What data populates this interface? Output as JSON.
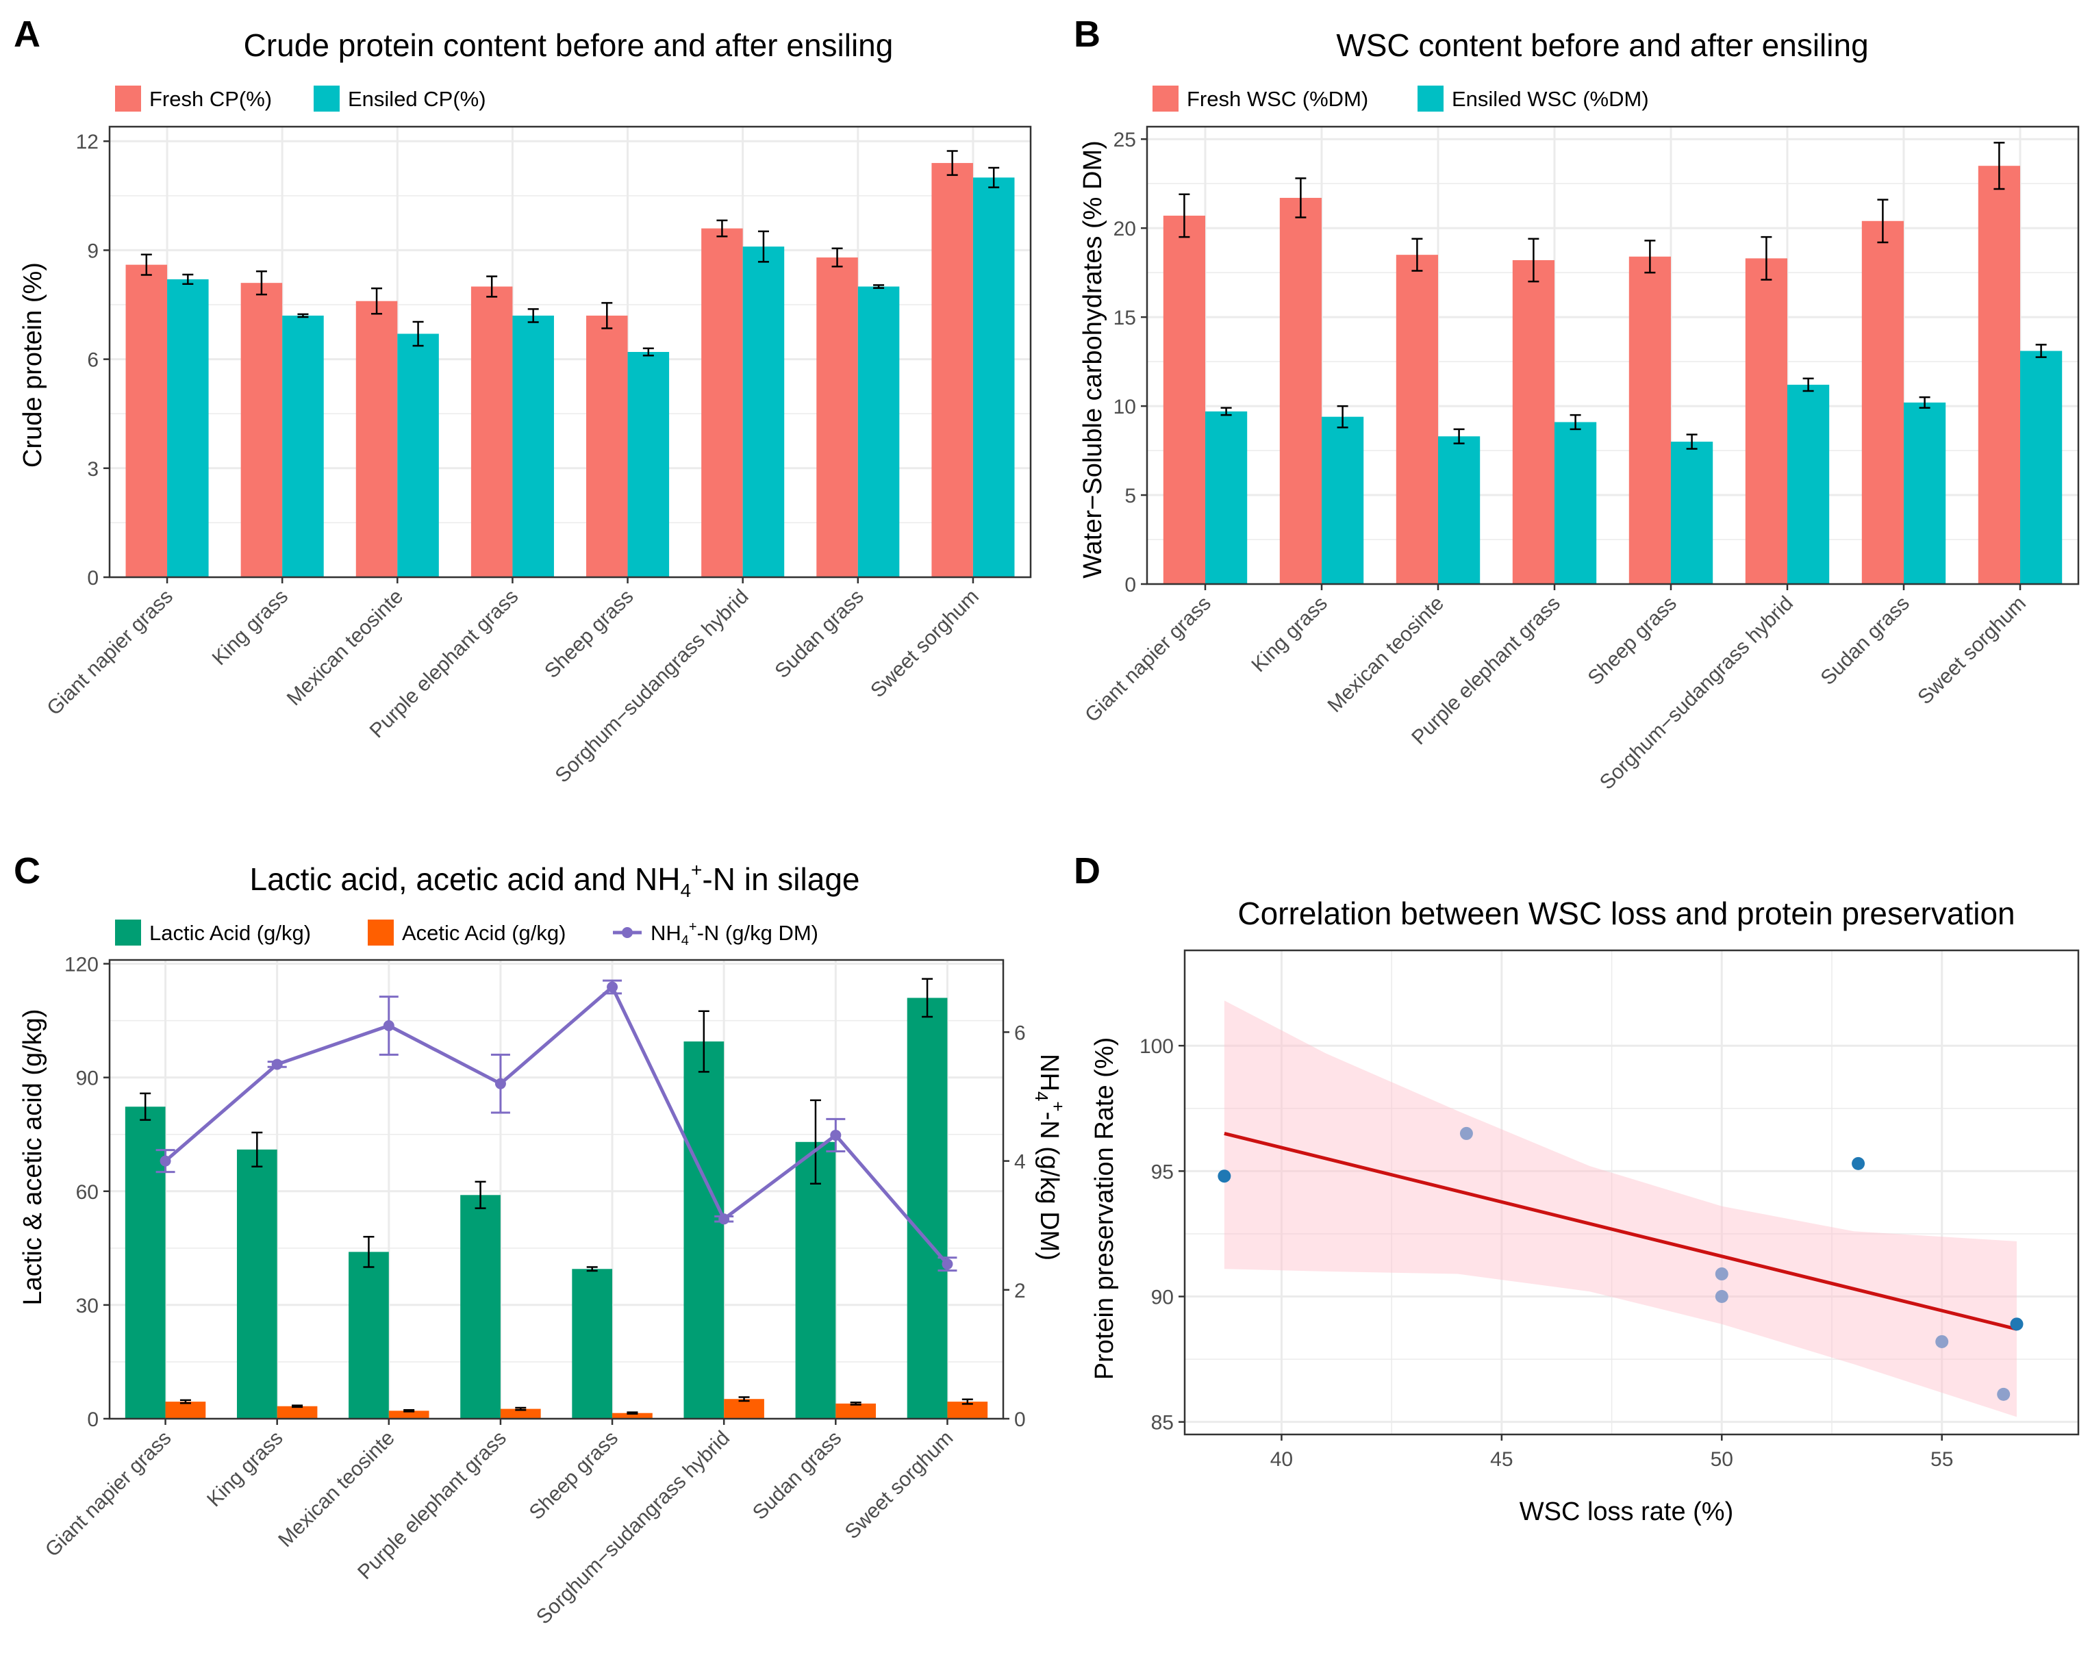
{
  "colors": {
    "fresh": "#F8766D",
    "ensiled": "#00BFC4",
    "lactic": "#009E73",
    "acetic": "#FF5F00",
    "nh4": "#7E6BC4",
    "fit_line": "#CC1111",
    "ribbon": "#FFC0CB",
    "grid": "#EBEBEB",
    "panel_border": "#333333",
    "point_dark": "#1F78B4",
    "point_light": "#8EA0CB"
  },
  "panels": [
    {
      "letter": "A"
    },
    {
      "letter": "B"
    },
    {
      "letter": "C"
    },
    {
      "letter": "D"
    }
  ],
  "chart_data": [
    {
      "id": "A",
      "type": "bar",
      "title": "Crude protein content before and after ensiling",
      "xlabel": "",
      "ylabel": "Crude protein (%)",
      "ylim": [
        0,
        12.4
      ],
      "yticks": [
        "0",
        "3",
        "6",
        "9",
        "12"
      ],
      "ytick_values": [
        0,
        3,
        6,
        9,
        12
      ],
      "categories": [
        "Giant napier grass",
        "King grass",
        "Mexican teosinte",
        "Purple elephant grass",
        "Sheep grass",
        "Sorghum−sudangrass hybrid",
        "Sudan grass",
        "Sweet sorghum"
      ],
      "series": [
        {
          "name": "Fresh CP(%)",
          "values": [
            8.6,
            8.1,
            7.6,
            8.0,
            7.2,
            9.6,
            8.8,
            11.4
          ],
          "errors": [
            0.28,
            0.32,
            0.35,
            0.28,
            0.35,
            0.22,
            0.25,
            0.33
          ]
        },
        {
          "name": "Ensiled CP(%)",
          "values": [
            8.2,
            7.2,
            6.7,
            7.2,
            6.2,
            9.1,
            8.0,
            11.0
          ],
          "errors": [
            0.13,
            0.04,
            0.33,
            0.18,
            0.1,
            0.42,
            0.04,
            0.27
          ]
        }
      ]
    },
    {
      "id": "B",
      "type": "bar",
      "title": "WSC content before and after ensiling",
      "xlabel": "",
      "ylabel": "Water−Soluble carbohydrates (% DM)",
      "ylim": [
        0,
        25.7
      ],
      "yticks": [
        "0",
        "5",
        "10",
        "15",
        "20",
        "25"
      ],
      "ytick_values": [
        0,
        5,
        10,
        15,
        20,
        25
      ],
      "categories": [
        "Giant napier grass",
        "King grass",
        "Mexican teosinte",
        "Purple elephant grass",
        "Sheep grass",
        "Sorghum−sudangrass hybrid",
        "Sudan grass",
        "Sweet sorghum"
      ],
      "series": [
        {
          "name": "Fresh WSC (%DM)",
          "values": [
            20.7,
            21.7,
            18.5,
            18.2,
            18.4,
            18.3,
            20.4,
            23.5
          ],
          "errors": [
            1.2,
            1.1,
            0.9,
            1.2,
            0.9,
            1.2,
            1.2,
            1.3
          ]
        },
        {
          "name": "Ensiled WSC (%DM)",
          "values": [
            9.7,
            9.4,
            8.3,
            9.1,
            8.0,
            11.2,
            10.2,
            13.1
          ],
          "errors": [
            0.2,
            0.6,
            0.4,
            0.4,
            0.4,
            0.35,
            0.3,
            0.35
          ]
        }
      ]
    },
    {
      "id": "C",
      "type": "bar",
      "title_main": "Lactic acid, acetic acid and NH",
      "title_sub": "4",
      "title_sup": "+",
      "title_tail": "-N in silage",
      "xlabel": "",
      "ylabel": "Lactic & acetic acid (g/kg)",
      "ylabel_right_parts": [
        "NH",
        "4",
        "+",
        "-N (g/kg DM)"
      ],
      "ylim": [
        0,
        121
      ],
      "yticks": [
        "0",
        "30",
        "60",
        "90",
        "120"
      ],
      "ytick_values": [
        0,
        30,
        60,
        90,
        120
      ],
      "y2lim": [
        0,
        7.12
      ],
      "y2ticks": [
        "0",
        "2",
        "4",
        "6"
      ],
      "y2tick_values": [
        0,
        2,
        4,
        6
      ],
      "categories": [
        "Giant napier grass",
        "King grass",
        "Mexican teosinte",
        "Purple elephant grass",
        "Sheep grass",
        "Sorghum−sudangrass hybrid",
        "Sudan grass",
        "Sweet sorghum"
      ],
      "series": [
        {
          "name": "Lactic Acid (g/kg)",
          "kind": "bar",
          "values": [
            82.3,
            71.0,
            44.0,
            59.0,
            39.5,
            99.5,
            73.0,
            111.0
          ],
          "errors": [
            3.5,
            4.5,
            4.0,
            3.5,
            0.5,
            8.0,
            11.0,
            5.0
          ]
        },
        {
          "name": "Acetic Acid (g/kg)",
          "kind": "bar",
          "values": [
            4.5,
            3.3,
            2.1,
            2.6,
            1.5,
            5.2,
            4.0,
            4.5
          ],
          "errors": [
            0.4,
            0.2,
            0.2,
            0.3,
            0.2,
            0.5,
            0.3,
            0.6
          ]
        },
        {
          "name_parts": [
            "NH",
            "4",
            "+",
            "-N (g/kg DM)"
          ],
          "name": "NH4+-N (g/kg DM)",
          "kind": "line",
          "axis": "right",
          "values": [
            4.0,
            5.5,
            6.1,
            5.2,
            6.7,
            3.1,
            4.4,
            2.4
          ],
          "errors": [
            0.17,
            0.04,
            0.45,
            0.45,
            0.1,
            0.04,
            0.25,
            0.1
          ]
        }
      ]
    },
    {
      "id": "D",
      "type": "scatter",
      "title": "Correlation between WSC loss and protein preservation",
      "xlabel": "WSC loss rate (%)",
      "ylabel": "Protein preservation Rate (%)",
      "xlim": [
        37.8,
        58.1
      ],
      "ylim": [
        84.5,
        103.8
      ],
      "xticks": [
        "40",
        "45",
        "50",
        "55"
      ],
      "xtick_values": [
        40,
        45,
        50,
        55
      ],
      "yticks": [
        "85",
        "90",
        "95",
        "100"
      ],
      "ytick_values": [
        85,
        90,
        95,
        100
      ],
      "points": [
        {
          "x": 38.7,
          "y": 94.8,
          "tone": "dark"
        },
        {
          "x": 44.2,
          "y": 96.5,
          "tone": "light"
        },
        {
          "x": 53.1,
          "y": 95.3,
          "tone": "dark"
        },
        {
          "x": 50.0,
          "y": 90.9,
          "tone": "light"
        },
        {
          "x": 50.0,
          "y": 90.0,
          "tone": "light"
        },
        {
          "x": 55.0,
          "y": 88.2,
          "tone": "light"
        },
        {
          "x": 56.7,
          "y": 88.9,
          "tone": "dark"
        },
        {
          "x": 56.4,
          "y": 86.1,
          "tone": "light"
        }
      ],
      "fit": {
        "x": [
          38.7,
          56.7
        ],
        "y": [
          96.5,
          88.7
        ]
      },
      "ribbon": {
        "x": [
          38.7,
          41,
          44,
          47,
          50,
          53,
          56.7
        ],
        "upper": [
          101.8,
          99.7,
          97.4,
          95.2,
          93.6,
          92.6,
          92.2
        ],
        "lower": [
          91.1,
          91.0,
          90.9,
          90.2,
          88.9,
          87.3,
          85.2
        ]
      }
    }
  ]
}
